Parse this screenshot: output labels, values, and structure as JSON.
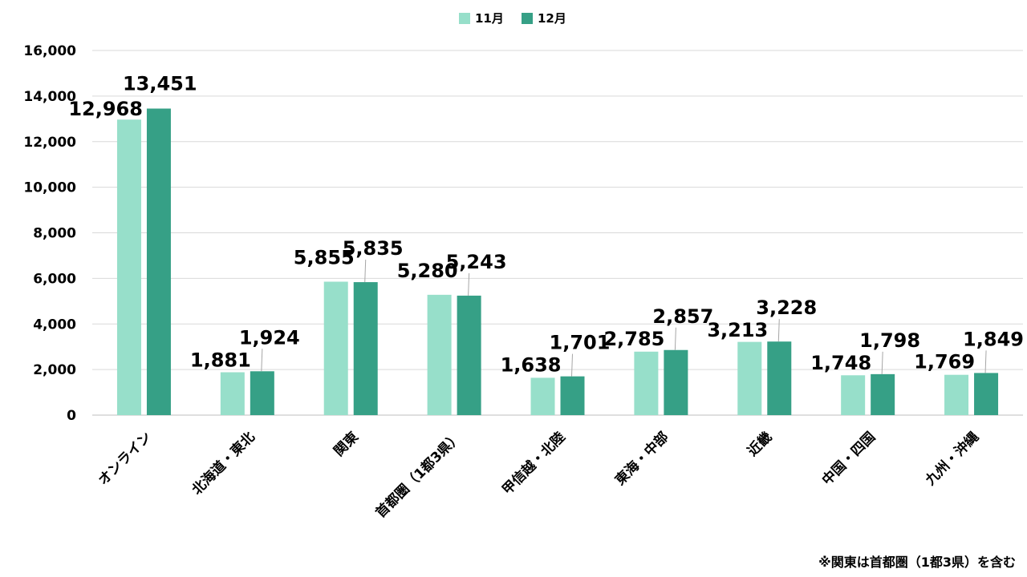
{
  "chart_data": {
    "type": "bar",
    "title": "",
    "xlabel": "",
    "ylabel": "",
    "categories": [
      "オンライン",
      "北海道・東北",
      "関東",
      "首都圏（1都3県）",
      "甲信越・北陸",
      "東海・中部",
      "近畿",
      "中国・四国",
      "九州・沖縄"
    ],
    "series": [
      {
        "name": "11月",
        "color": "#97dfca",
        "values": [
          12968,
          1881,
          5855,
          5280,
          1638,
          2785,
          3213,
          1748,
          1769
        ],
        "labels": [
          "12,968",
          "1,881",
          "5,855",
          "5,280",
          "1,638",
          "2,785",
          "3,213",
          "1,748",
          "1,769"
        ]
      },
      {
        "name": "12月",
        "color": "#36a086",
        "values": [
          13451,
          1924,
          5835,
          5243,
          1701,
          2857,
          3228,
          1798,
          1849
        ],
        "labels": [
          "13,451",
          "1,924",
          "5,835",
          "5,243",
          "1,701",
          "2,857",
          "3,228",
          "1,798",
          "1,849"
        ]
      }
    ],
    "ylim": [
      0,
      16000
    ],
    "yticks": [
      0,
      2000,
      4000,
      6000,
      8000,
      10000,
      12000,
      14000,
      16000
    ],
    "ytick_labels": [
      "0",
      "2,000",
      "4,000",
      "6,000",
      "8,000",
      "10,000",
      "12,000",
      "14,000",
      "16,000"
    ],
    "grid": true,
    "legend_position": "top-center"
  },
  "footnote": "※関東は首都圏（1都3県）を含む"
}
